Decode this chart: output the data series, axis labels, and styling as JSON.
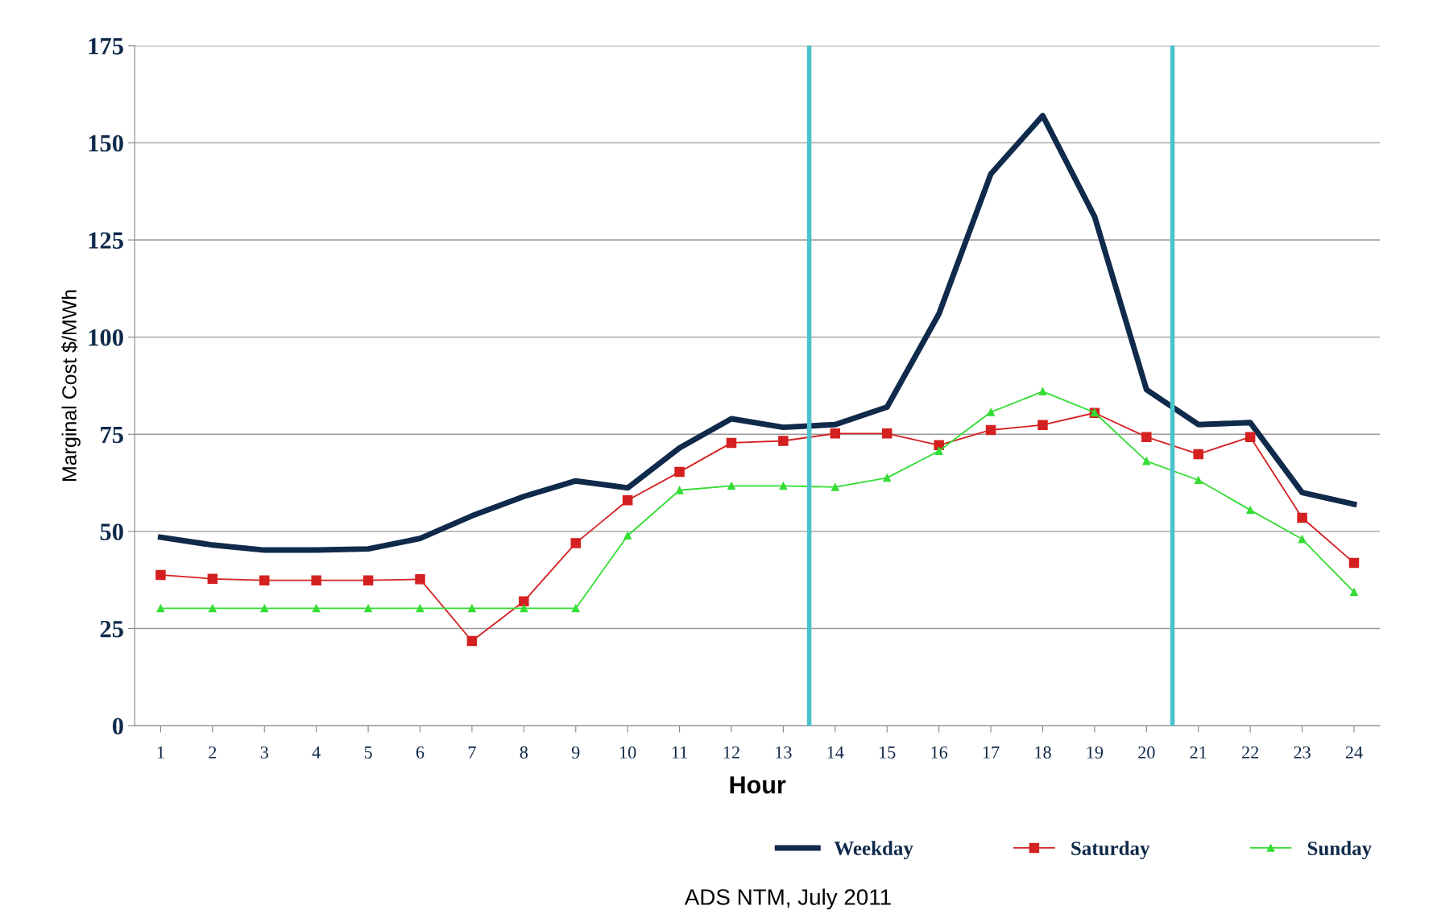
{
  "chart_data": {
    "type": "line",
    "xlabel": "Hour",
    "ylabel": "Marginal Cost $/MWh",
    "x": [
      1,
      2,
      3,
      4,
      5,
      6,
      7,
      8,
      9,
      10,
      11,
      12,
      13,
      14,
      15,
      16,
      17,
      18,
      19,
      20,
      21,
      22,
      23,
      24
    ],
    "xlim": [
      0.5,
      24.5
    ],
    "xticks": [
      1,
      2,
      3,
      4,
      5,
      6,
      7,
      8,
      9,
      10,
      11,
      12,
      13,
      14,
      15,
      16,
      17,
      18,
      19,
      20,
      21,
      22,
      23,
      24
    ],
    "ylim": [
      0,
      175
    ],
    "yticks": [
      0,
      25,
      50,
      75,
      100,
      125,
      150,
      175
    ],
    "grid": "y",
    "legend": "bottom right",
    "series": [
      {
        "name": "Weekday",
        "color": "#0f2a4a",
        "marker": "none",
        "values": [
          48.5,
          46.5,
          45.2,
          45.2,
          45.5,
          48.2,
          54,
          59,
          63,
          61.2,
          71.5,
          79,
          76.8,
          77.5,
          82,
          106,
          142,
          157,
          131,
          86.5,
          77.5,
          78,
          60,
          57
        ]
      },
      {
        "name": "Saturday",
        "color": "#d42020",
        "marker": "square",
        "values": [
          38.8,
          37.8,
          37.4,
          37.4,
          37.4,
          37.7,
          21.8,
          32,
          47,
          58,
          65.3,
          72.8,
          73.3,
          75.2,
          75.2,
          72.2,
          76.1,
          77.4,
          80.5,
          74.3,
          69.9,
          74.3,
          53.5,
          41.9
        ]
      },
      {
        "name": "Sunday",
        "color": "#33dd33",
        "marker": "triangle",
        "values": [
          30.2,
          30.2,
          30.2,
          30.2,
          30.2,
          30.2,
          30.2,
          30.2,
          30.2,
          48.9,
          60.6,
          61.7,
          61.7,
          61.4,
          63.8,
          70.7,
          80.7,
          86,
          80.6,
          68.1,
          63.2,
          55.5,
          48,
          34.4
        ]
      }
    ],
    "ref_lines": [
      {
        "axis": "x",
        "value": 13.5,
        "label": null,
        "color": "#4bc3cc"
      },
      {
        "axis": "x",
        "value": 20.5,
        "label": null,
        "color": "#4bc3cc"
      }
    ],
    "annotations": [
      "ADS NTM, July 2011"
    ]
  }
}
